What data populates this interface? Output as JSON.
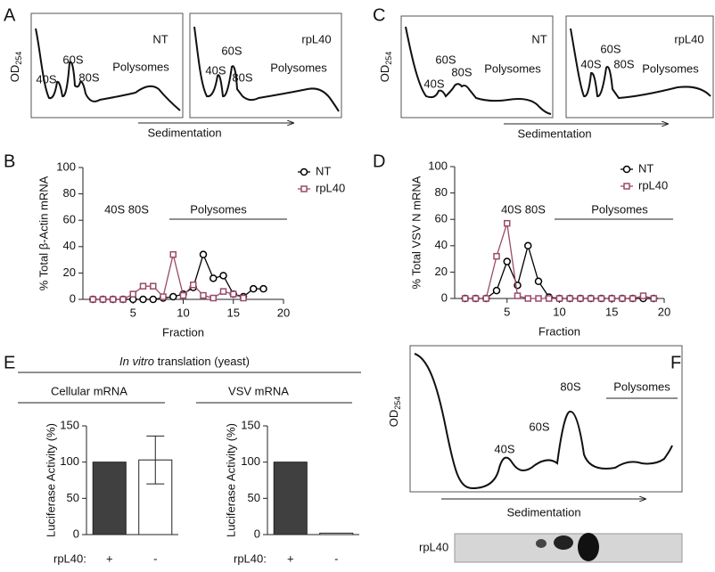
{
  "panel_labels": [
    "A",
    "B",
    "C",
    "D",
    "E",
    "F"
  ],
  "profiles": [
    {
      "ylabel": "OD",
      "ylabel_sub": "254",
      "xlabel": "Sedimentation",
      "panels": [
        {
          "title": "NT",
          "peaks": [
            "40S",
            "60S",
            "80S",
            "Polysomes"
          ]
        },
        {
          "title": "rpL40",
          "peaks": [
            "40S",
            "60S",
            "80S",
            "Polysomes"
          ]
        }
      ]
    },
    {
      "ylabel": "OD",
      "ylabel_sub": "254",
      "xlabel": "Sedimentation",
      "panels": [
        {
          "title": "NT",
          "peaks": [
            "40S",
            "60S",
            "80S",
            "Polysomes"
          ]
        },
        {
          "title": "rpL40",
          "peaks": [
            "40S",
            "60S",
            "80S",
            "Polysomes"
          ]
        }
      ]
    }
  ],
  "chart_data": [
    {
      "type": "line",
      "ylabel": "% Total β-Actin mRNA",
      "xlabel": "Fraction",
      "annotations": [
        "40S 80S",
        "Polysomes"
      ],
      "x": [
        1,
        2,
        3,
        4,
        5,
        6,
        7,
        8,
        9,
        10,
        11,
        12,
        13,
        14,
        15,
        16,
        17,
        18
      ],
      "series": [
        {
          "name": "NT",
          "color": "#000000",
          "marker": "circle",
          "values": [
            0,
            0,
            0,
            0,
            0,
            0,
            0,
            1,
            2,
            4,
            9,
            34,
            16,
            18,
            4,
            2,
            8,
            8
          ]
        },
        {
          "name": "rpL40",
          "color": "#9b4a6a",
          "marker": "square",
          "values": [
            0,
            0,
            0,
            0,
            4,
            10,
            10,
            2,
            34,
            3,
            11,
            3,
            1,
            6,
            4,
            1,
            null,
            null
          ]
        }
      ],
      "xlim": [
        0,
        20
      ],
      "xticks": [
        5,
        10,
        15,
        20
      ],
      "ylim": [
        0,
        100
      ],
      "yticks": [
        0,
        20,
        40,
        60,
        80,
        100
      ]
    },
    {
      "type": "line",
      "ylabel": "% Total VSV N mRNA",
      "xlabel": "Fraction",
      "annotations": [
        "40S 80S",
        "Polysomes"
      ],
      "x": [
        1,
        2,
        3,
        4,
        5,
        6,
        7,
        8,
        9,
        10,
        11,
        12,
        13,
        14,
        15,
        16,
        17,
        18,
        19
      ],
      "series": [
        {
          "name": "NT",
          "color": "#000000",
          "marker": "circle",
          "values": [
            0,
            0,
            0,
            6,
            28,
            10,
            40,
            13,
            1,
            0,
            0,
            0,
            0,
            0,
            0,
            0,
            0,
            0,
            0
          ]
        },
        {
          "name": "rpL40",
          "color": "#9b4a6a",
          "marker": "square",
          "values": [
            0,
            0,
            0,
            32,
            57,
            2,
            0,
            0,
            0,
            0,
            0,
            0,
            0,
            0,
            0,
            0,
            0,
            2,
            0
          ]
        }
      ],
      "xlim": [
        0,
        20
      ],
      "xticks": [
        5,
        10,
        15,
        20
      ],
      "ylim": [
        0,
        100
      ],
      "yticks": [
        0,
        20,
        40,
        60,
        80,
        100
      ]
    },
    {
      "type": "bar",
      "ylabel": "Luciferase Activity (%)",
      "group_label": "rpL40:",
      "categories": [
        "+",
        "-"
      ],
      "values": [
        100,
        103
      ],
      "errors": [
        null,
        33
      ],
      "colors": [
        "#404040",
        "#ffffff"
      ],
      "ylim": [
        0,
        150
      ],
      "yticks": [
        0,
        50,
        100,
        150
      ]
    },
    {
      "type": "bar",
      "ylabel": "Luciferase Activity (%)",
      "group_label": "rpL40:",
      "categories": [
        "+",
        "-"
      ],
      "values": [
        100,
        2
      ],
      "errors": [
        null,
        null
      ],
      "colors": [
        "#404040",
        "#ffffff"
      ],
      "ylim": [
        0,
        150
      ],
      "yticks": [
        0,
        50,
        100,
        150
      ]
    }
  ],
  "translation": {
    "title_italic": "In vitro",
    "title": " translation (yeast)",
    "groups": [
      "Cellular mRNA",
      "VSV mRNA"
    ]
  },
  "gradient": {
    "ylabel": "OD",
    "ylabel_sub": "254",
    "peaks": [
      "40S",
      "60S",
      "80S",
      "Polysomes"
    ],
    "xlabel": "Sedimentation",
    "blot_label": "rpL40"
  }
}
